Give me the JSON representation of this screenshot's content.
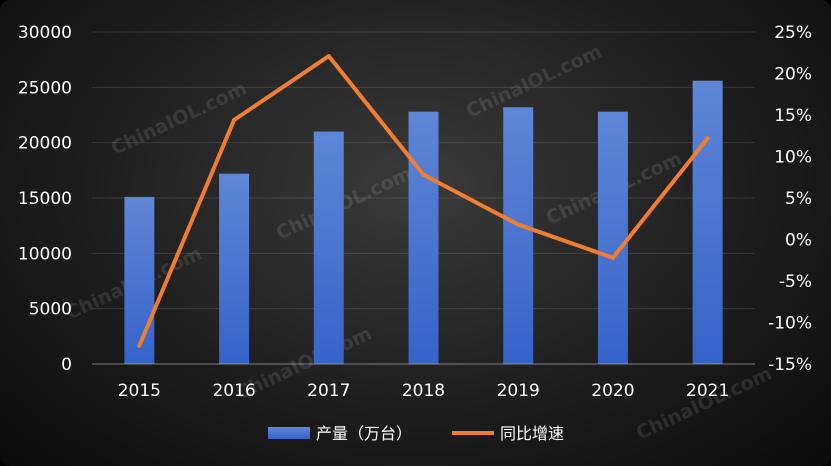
{
  "chart_data": {
    "type": "bar",
    "categories": [
      "2015",
      "2016",
      "2017",
      "2018",
      "2019",
      "2020",
      "2021"
    ],
    "series": [
      {
        "name": "产量（万台）",
        "type": "bar",
        "axis": "left",
        "color": "#3f6fd0",
        "values": [
          15100,
          17200,
          21000,
          22800,
          23200,
          22800,
          25600
        ]
      },
      {
        "name": "同比增速",
        "type": "line",
        "axis": "right",
        "color": "#ef7d32",
        "values": [
          -12.8,
          14.4,
          22.1,
          7.8,
          1.8,
          -2.2,
          12.2
        ]
      }
    ],
    "ylim_left": [
      0,
      30000
    ],
    "yticks_left": [
      "0",
      "5000",
      "10000",
      "15000",
      "20000",
      "25000",
      "30000"
    ],
    "ylim_right": [
      -15,
      25
    ],
    "yticks_right": [
      "-15%",
      "-10%",
      "-5%",
      "0%",
      "5%",
      "10%",
      "15%",
      "20%",
      "25%"
    ],
    "grid": true,
    "legend_position": "bottom",
    "watermark": "ChinaIOL.com"
  }
}
